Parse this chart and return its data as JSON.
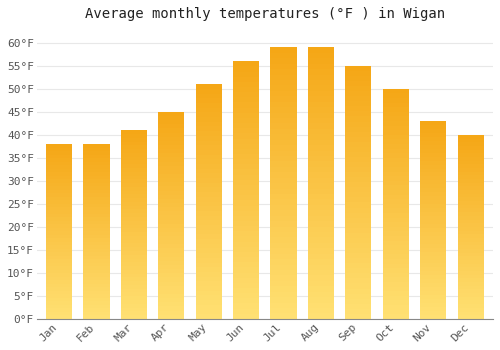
{
  "title": "Average monthly temperatures (°F ) in Wigan",
  "months": [
    "Jan",
    "Feb",
    "Mar",
    "Apr",
    "May",
    "Jun",
    "Jul",
    "Aug",
    "Sep",
    "Oct",
    "Nov",
    "Dec"
  ],
  "values": [
    38,
    38,
    41,
    45,
    51,
    56,
    59,
    59,
    55,
    50,
    43,
    40
  ],
  "bar_color_top": "#F5A800",
  "bar_color_bottom": "#FFD966",
  "ylim": [
    0,
    63
  ],
  "yticks": [
    0,
    5,
    10,
    15,
    20,
    25,
    30,
    35,
    40,
    45,
    50,
    55,
    60
  ],
  "background_color": "#FFFFFF",
  "grid_color": "#E8E8E8",
  "title_fontsize": 10,
  "tick_fontsize": 8
}
